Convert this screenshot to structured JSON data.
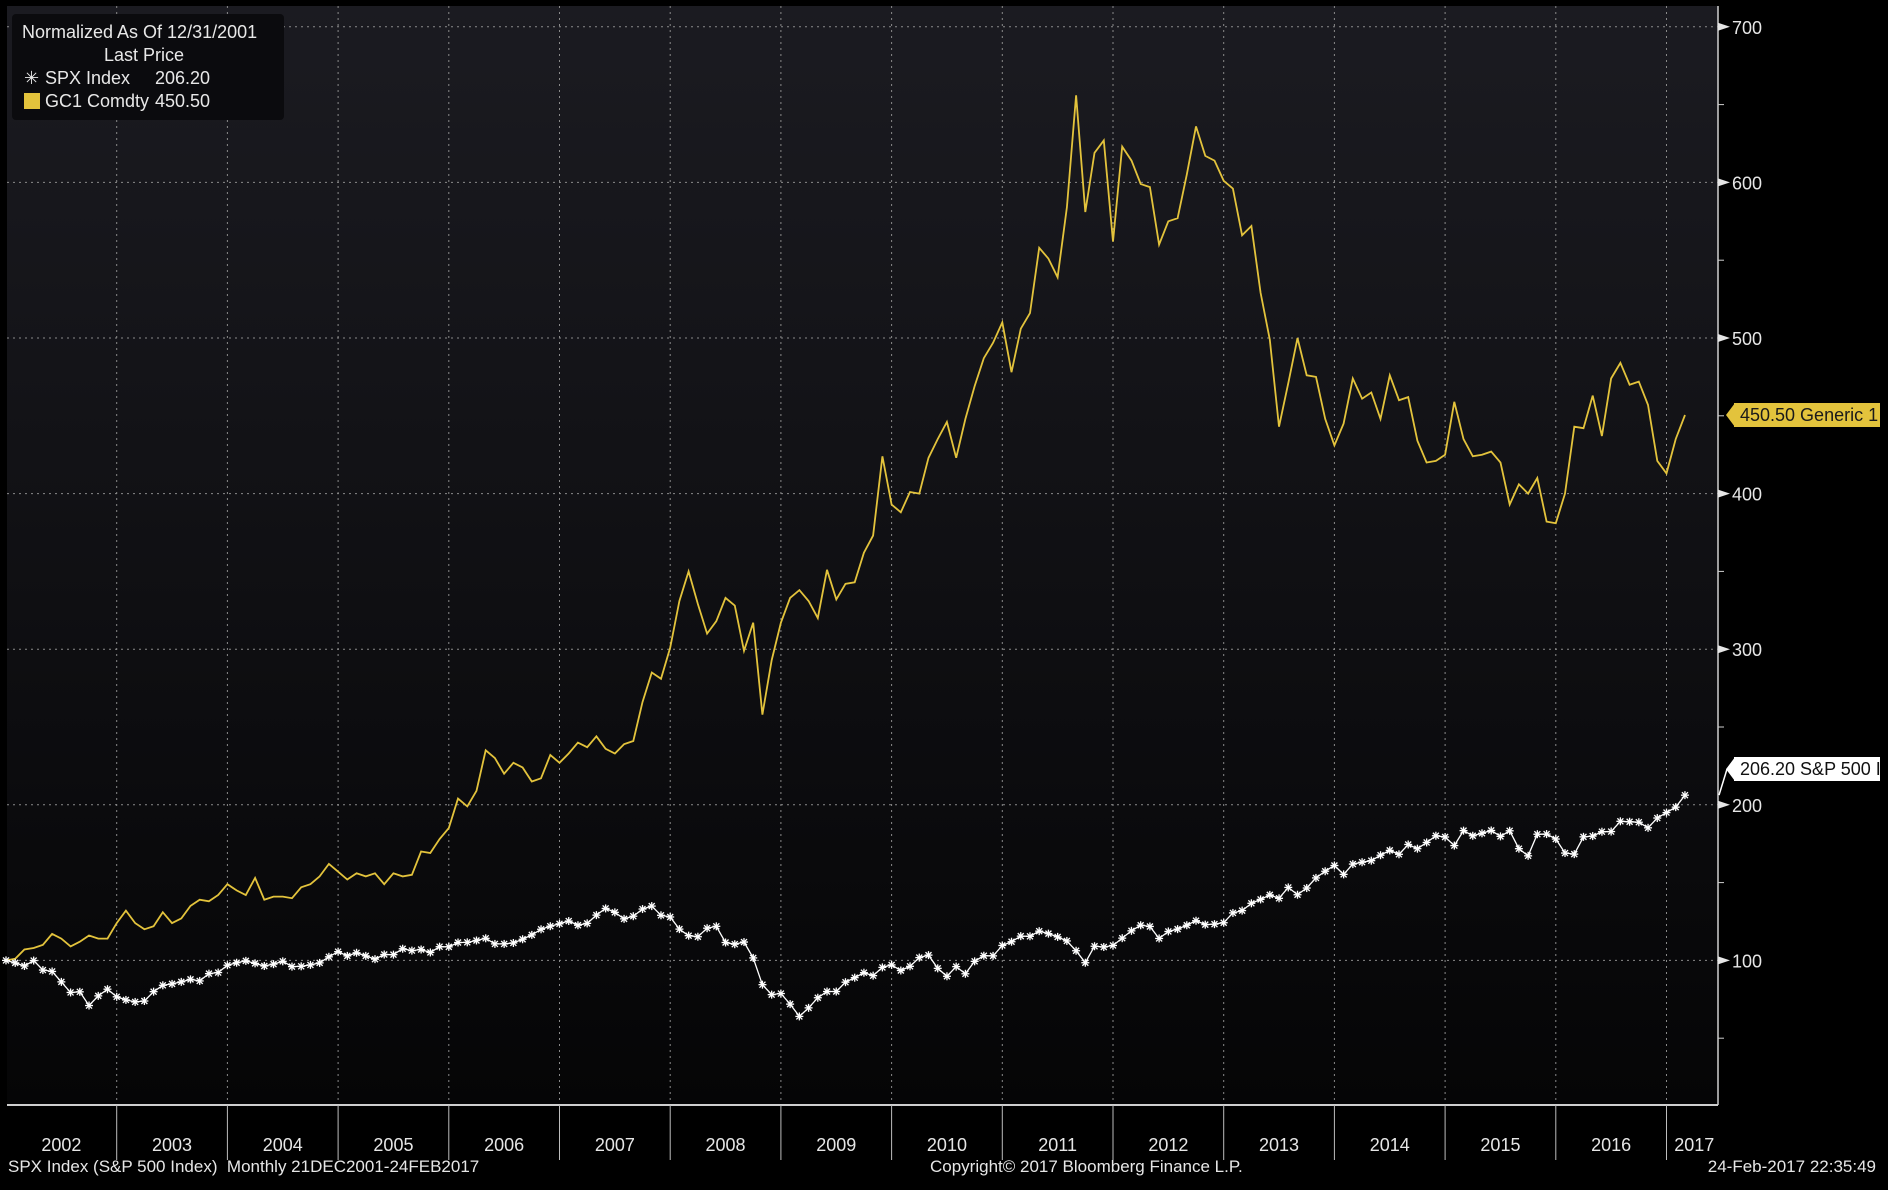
{
  "chart_data": {
    "type": "line",
    "frequency": "Monthly",
    "x_range": [
      "2001-12",
      "2017-02"
    ],
    "x_tick_labels": [
      "2002",
      "2003",
      "2004",
      "2005",
      "2006",
      "2007",
      "2008",
      "2009",
      "2010",
      "2011",
      "2012",
      "2013",
      "2014",
      "2015",
      "2016",
      "2017"
    ],
    "y_tick_labels": [
      "100",
      "200",
      "300",
      "400",
      "500",
      "600",
      "700"
    ],
    "ylim": [
      7,
      712
    ],
    "y_axis_position": "right",
    "grid": true,
    "legend_placement": "top-left",
    "legend": {
      "title": "Normalized As Of 12/31/2001",
      "subtitle": "Last Price",
      "entries": [
        {
          "name": "SPX Index",
          "value": "206.20",
          "marker": "asterisk",
          "color": "#ffffff"
        },
        {
          "name": "GC1 Comdty",
          "value": "450.50",
          "marker": "square",
          "color": "#e3c33c"
        }
      ]
    },
    "series": [
      {
        "name": "SPX Index",
        "color": "#ffffff",
        "last_label": "206.20 S&P 500 I",
        "values": [
          100,
          98.4,
          96.4,
          99.9,
          93.8,
          92.9,
          86.2,
          79.4,
          79.8,
          71.0,
          77.2,
          81.5,
          76.6,
          74.6,
          73.3,
          73.9,
          79.9,
          84.0,
          84.9,
          86.2,
          87.8,
          86.8,
          91.5,
          92.2,
          96.9,
          98.5,
          99.7,
          98.1,
          96.4,
          97.6,
          99.4,
          96.0,
          96.2,
          97.1,
          98.4,
          102.3,
          105.6,
          102.9,
          104.9,
          102.9,
          100.8,
          103.8,
          103.7,
          107.5,
          106.3,
          107.0,
          105.1,
          108.8,
          108.7,
          111.5,
          111.6,
          112.8,
          114.2,
          110.6,
          110.6,
          111.2,
          113.6,
          116.4,
          120.0,
          122.0,
          123.5,
          125.3,
          122.6,
          123.8,
          129.1,
          133.4,
          130.9,
          126.7,
          128.4,
          133.0,
          134.9,
          129.0,
          127.9,
          120.1,
          115.9,
          115.2,
          120.7,
          121.9,
          111.5,
          110.4,
          111.8,
          101.6,
          84.4,
          78.0,
          78.7,
          71.9,
          64.0,
          69.5,
          76.0,
          80.0,
          80.0,
          86.0,
          88.9,
          92.1,
          90.2,
          95.5,
          97.1,
          93.5,
          96.2,
          101.8,
          103.4,
          94.9,
          89.8,
          96.0,
          91.4,
          99.4,
          103.0,
          102.9,
          109.6,
          112.0,
          115.6,
          115.5,
          118.8,
          117.2,
          115.1,
          112.5,
          106.2,
          98.5,
          109.1,
          108.6,
          109.6,
          114.3,
          119.0,
          122.6,
          121.8,
          114.1,
          118.6,
          120.1,
          122.6,
          125.5,
          123.0,
          123.3,
          124.2,
          130.5,
          132.0,
          136.7,
          139.2,
          142.1,
          139.9,
          146.9,
          142.2,
          146.5,
          153.0,
          157.3,
          161.0,
          155.3,
          161.9,
          163.1,
          164.1,
          167.6,
          170.7,
          168.2,
          174.5,
          171.8,
          175.8,
          180.1,
          179.3,
          173.8,
          183.4,
          180.1,
          181.7,
          183.5,
          179.7,
          183.3,
          171.8,
          167.2,
          181.1,
          181.2,
          178.0,
          169.0,
          168.3,
          179.4,
          179.9,
          182.7,
          182.8,
          189.4,
          189.1,
          188.8,
          185.2,
          191.5,
          195.0,
          198.5,
          206.2
        ]
      },
      {
        "name": "GC1 Comdty",
        "color": "#e3c33c",
        "last_label": "450.50 Generic 1",
        "values": [
          100,
          101,
          107,
          108,
          110,
          117,
          114,
          109,
          112,
          116,
          114,
          114,
          124,
          132,
          124,
          120,
          122,
          131,
          124,
          127,
          135,
          139,
          138,
          142,
          149,
          145,
          142,
          153,
          139,
          141,
          141,
          140,
          147,
          149,
          154,
          162,
          157,
          152,
          156,
          154,
          156,
          149,
          156,
          154,
          155,
          170,
          169,
          178,
          185,
          204,
          199,
          209,
          235,
          230,
          220,
          227,
          224,
          215,
          217,
          232,
          227,
          233,
          240,
          237,
          244,
          236,
          233,
          239,
          241,
          266,
          285,
          281,
          301,
          331,
          350,
          329,
          310,
          318,
          333,
          328,
          299,
          317,
          258,
          293,
          317,
          333,
          338,
          331,
          320,
          351,
          332,
          342,
          343,
          362,
          373,
          424,
          393,
          388,
          401,
          400,
          423,
          435,
          446,
          423,
          448,
          469,
          487,
          497,
          510,
          478,
          506,
          516,
          558,
          551,
          539,
          584,
          656,
          581,
          619,
          627,
          562,
          623,
          614,
          599,
          597,
          560,
          575,
          577,
          605,
          636,
          617,
          614,
          601,
          596,
          566,
          572,
          529,
          499,
          443,
          471,
          500,
          476,
          475,
          448,
          431,
          445,
          474,
          461,
          465,
          448,
          476,
          460,
          462,
          434,
          420,
          421,
          425,
          459,
          435,
          424,
          425,
          427,
          420,
          393,
          406,
          400,
          410,
          382,
          381,
          400,
          443,
          442,
          463,
          437,
          474,
          484,
          470,
          472,
          457,
          421,
          413,
          435,
          450.5
        ]
      }
    ]
  },
  "footer": {
    "left": "SPX Index (S&P 500 Index)  Monthly 21DEC2001-24FEB2017",
    "center": "Copyright© 2017 Bloomberg Finance L.P.",
    "right": "24-Feb-2017 22:35:49"
  }
}
